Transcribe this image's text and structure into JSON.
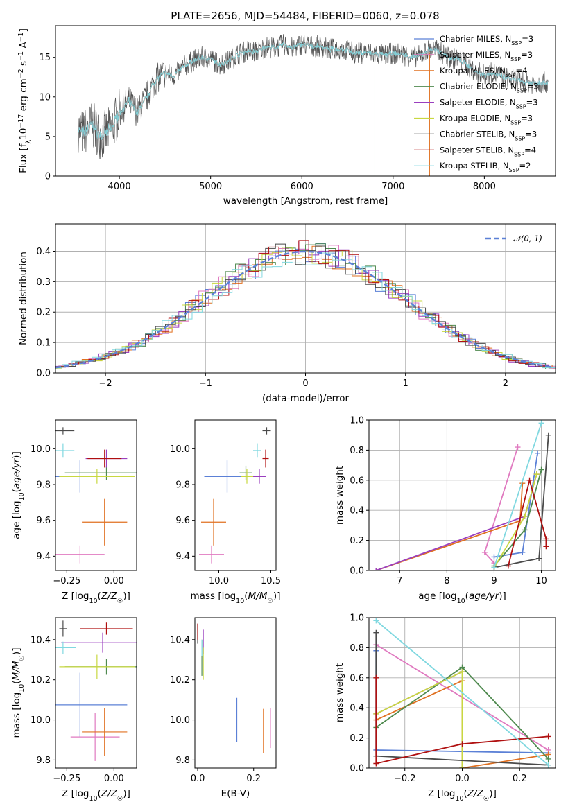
{
  "figure": {
    "title": "PLATE=2656, MJD=54484, FIBERID=0060, z=0.078"
  },
  "chart_data": [
    {
      "id": "spectrum",
      "type": "line",
      "title": "PLATE=2656, MJD=54484, FIBERID=0060, z=0.078",
      "xlabel": "wavelength [Angstrom, rest frame]",
      "ylabel": "Flux [f_λ 10^-17 erg cm^-2 s^-1 A^-1]",
      "xlim": [
        3300,
        8780
      ],
      "ylim": [
        0,
        19
      ],
      "xticks": [
        4000,
        5000,
        6000,
        7000,
        8000
      ],
      "yticks": [
        0,
        5,
        10,
        15
      ],
      "legend_position": "top-right",
      "data": {
        "x": [
          3550,
          3600,
          3700,
          3800,
          3900,
          4000,
          4100,
          4200,
          4300,
          4400,
          4500,
          4600,
          4700,
          4800,
          4900,
          5000,
          5100,
          5200,
          5300,
          5400,
          5500,
          5600,
          5700,
          5800,
          5900,
          6000,
          6100,
          6200,
          6300,
          6400,
          6500,
          6600,
          6700,
          6800,
          6900,
          7000,
          7100,
          7200,
          7300,
          7400,
          7500,
          7600,
          7700,
          7800,
          7900,
          8000,
          8100,
          8200,
          8300,
          8400,
          8500
        ],
        "y": [
          6.0,
          5.4,
          6.5,
          5.0,
          5.8,
          8.0,
          9.5,
          8.0,
          10.0,
          12.2,
          13.0,
          12.7,
          13.8,
          14.5,
          15.0,
          14.8,
          14.1,
          14.5,
          15.4,
          15.8,
          15.7,
          16.3,
          16.2,
          16.6,
          16.2,
          16.7,
          16.4,
          16.4,
          16.0,
          16.1,
          15.9,
          15.5,
          15.6,
          15.4,
          15.3,
          15.5,
          15.4,
          15.0,
          15.2,
          16.0,
          15.8,
          15.0,
          14.8,
          14.2,
          13.2,
          12.8,
          13.0,
          12.5,
          12.2,
          12.0,
          11.8
        ]
      },
      "series": [
        {
          "name": "Chabrier MILES, N_SSP=3",
          "label_main": "Chabrier MILES, N",
          "label_sub": "SSP",
          "label_tail": "=3",
          "color": "#5b80d6",
          "xmin": 3550,
          "xmax": 7400
        },
        {
          "name": "Salpeter MILES, N_SSP=3",
          "label_main": "Salpeter MILES, N",
          "label_sub": "SSP",
          "label_tail": "=3",
          "color": "#e07ac0",
          "xmin": 3550,
          "xmax": 7400
        },
        {
          "name": "Kroupa MILES, N_SSP=4",
          "label_main": "Kroupa MILES, N",
          "label_sub": "SSP",
          "label_tail": "=4",
          "color": "#e07020",
          "xmin": 3550,
          "xmax": 7400
        },
        {
          "name": "Chabrier ELODIE, N_SSP=3",
          "label_main": "Chabrier ELODIE, N",
          "label_sub": "SSP",
          "label_tail": "=3",
          "color": "#4f8a4f",
          "xmin": 3900,
          "xmax": 6800
        },
        {
          "name": "Salpeter ELODIE, N_SSP=3",
          "label_main": "Salpeter ELODIE, N",
          "label_sub": "SSP",
          "label_tail": "=3",
          "color": "#9a3fbf",
          "xmin": 3900,
          "xmax": 6800
        },
        {
          "name": "Kroupa ELODIE, N_SSP=3",
          "label_main": "Kroupa ELODIE, N",
          "label_sub": "SSP",
          "label_tail": "=3",
          "color": "#c8d840",
          "xmin": 3900,
          "xmax": 6800
        },
        {
          "name": "Chabrier STELIB, N_SSP=3",
          "label_main": "Chabrier STELIB, N",
          "label_sub": "SSP",
          "label_tail": "=3",
          "color": "#4a4a4a",
          "xmin": 3550,
          "xmax": 8700
        },
        {
          "name": "Salpeter STELIB, N_SSP=4",
          "label_main": "Salpeter STELIB, N",
          "label_sub": "SSP",
          "label_tail": "=4",
          "color": "#b01010",
          "xmin": 3550,
          "xmax": 8700
        },
        {
          "name": "Kroupa STELIB, N_SSP=2",
          "label_main": "Kroupa STELIB, N",
          "label_sub": "SSP",
          "label_tail": "=2",
          "color": "#80d8e0",
          "xmin": 3550,
          "xmax": 8700
        }
      ]
    },
    {
      "id": "residuals",
      "type": "histogram",
      "xlabel": "(data-model)/error",
      "ylabel": "Normed distribution",
      "xlim": [
        -2.5,
        2.5
      ],
      "ylim": [
        0,
        0.49
      ],
      "xticks": [
        -2,
        -1,
        0,
        1,
        2
      ],
      "yticks": [
        0.0,
        0.1,
        0.2,
        0.3,
        0.4
      ],
      "xtick_labels": [
        "−2",
        "−1",
        "0",
        "1",
        "2"
      ],
      "yticklabels": [
        "0.0",
        "0.1",
        "0.2",
        "0.3",
        "0.4"
      ],
      "bin_width": 0.1,
      "reference_curve": {
        "name": "N(0,1)",
        "label_main": "𝒩(0, 1)",
        "mean": 0,
        "sigma": 1,
        "color": "#5b80d6"
      },
      "legend_position": "top-right",
      "grid": true
    },
    {
      "id": "age_vs_Z",
      "type": "errorbar",
      "xlabel": "Z [log10(Z/Z☉)]",
      "ylabel": "age [log10(age/yr)]",
      "xlim": [
        -0.31,
        0.12
      ],
      "ylim": [
        9.32,
        10.16
      ],
      "xticks": [
        -0.25,
        0.0
      ],
      "yticks": [
        9.4,
        9.6,
        9.8,
        10.0
      ],
      "xtick_labels": [
        "−0.25",
        "0.00"
      ],
      "ytick_labels": [
        "9.4",
        "9.6",
        "9.8",
        "10.0"
      ],
      "points": [
        {
          "x": -0.18,
          "y": 9.845,
          "xerr": 0.25,
          "yerr": 0.09,
          "color": "#5b80d6"
        },
        {
          "x": -0.18,
          "y": 9.41,
          "xerr": 0.13,
          "yerr": 0.05,
          "color": "#e07ac0"
        },
        {
          "x": -0.05,
          "y": 9.59,
          "xerr": 0.12,
          "yerr": 0.13,
          "color": "#e07020"
        },
        {
          "x": -0.04,
          "y": 9.865,
          "xerr": 0.22,
          "yerr": 0.04,
          "color": "#4f8a4f"
        },
        {
          "x": -0.04,
          "y": 9.945,
          "xerr": 0.11,
          "yerr": 0.05,
          "color": "#9a3fbf"
        },
        {
          "x": -0.09,
          "y": 9.845,
          "xerr": 0.2,
          "yerr": 0.04,
          "color": "#c8d840"
        },
        {
          "x": -0.27,
          "y": 10.1,
          "xerr": 0.06,
          "yerr": 0.02,
          "color": "#4a4a4a"
        },
        {
          "x": -0.05,
          "y": 9.945,
          "xerr": 0.09,
          "yerr": 0.05,
          "color": "#b01010"
        },
        {
          "x": -0.27,
          "y": 9.99,
          "xerr": 0.06,
          "yerr": 0.04,
          "color": "#80d8e0"
        }
      ]
    },
    {
      "id": "age_vs_mass",
      "type": "errorbar",
      "xlabel": "mass [log10(M/M☉)]",
      "ylabel": "",
      "xlim": [
        9.77,
        10.55
      ],
      "ylim": [
        9.32,
        10.16
      ],
      "xticks": [
        10.0,
        10.5
      ],
      "yticks": [
        9.4,
        9.6,
        9.8,
        10.0
      ],
      "xtick_labels": [
        "10.0",
        "10.5"
      ],
      "ytick_labels": [
        "9.4",
        "9.6",
        "9.8",
        "10.0"
      ],
      "points": [
        {
          "x": 10.08,
          "y": 9.845,
          "xerr": 0.22,
          "yerr": 0.09,
          "color": "#5b80d6"
        },
        {
          "x": 9.93,
          "y": 9.41,
          "xerr": 0.12,
          "yerr": 0.05,
          "color": "#e07ac0"
        },
        {
          "x": 9.95,
          "y": 9.59,
          "xerr": 0.12,
          "yerr": 0.13,
          "color": "#e07020"
        },
        {
          "x": 10.26,
          "y": 9.865,
          "xerr": 0.06,
          "yerr": 0.04,
          "color": "#4f8a4f"
        },
        {
          "x": 10.39,
          "y": 9.845,
          "xerr": 0.06,
          "yerr": 0.04,
          "color": "#9a3fbf"
        },
        {
          "x": 10.27,
          "y": 9.845,
          "xerr": 0.06,
          "yerr": 0.04,
          "color": "#c8d840"
        },
        {
          "x": 10.46,
          "y": 10.1,
          "xerr": 0.04,
          "yerr": 0.02,
          "color": "#4a4a4a"
        },
        {
          "x": 10.45,
          "y": 9.945,
          "xerr": 0.03,
          "yerr": 0.05,
          "color": "#b01010"
        },
        {
          "x": 10.37,
          "y": 9.99,
          "xerr": 0.04,
          "yerr": 0.04,
          "color": "#80d8e0"
        }
      ]
    },
    {
      "id": "mass_weight_vs_age",
      "type": "line",
      "xlabel": "age [log10(age/yr)]",
      "ylabel": "mass weight",
      "xlim": [
        6.35,
        10.3
      ],
      "ylim": [
        0,
        1.0
      ],
      "xticks": [
        7,
        8,
        9,
        10
      ],
      "yticks": [
        0.0,
        0.2,
        0.4,
        0.6,
        0.8,
        1.0
      ],
      "xtick_labels": [
        "7",
        "8",
        "9",
        "10"
      ],
      "ytick_labels": [
        "0.0",
        "0.2",
        "0.4",
        "0.6",
        "0.8",
        "1.0"
      ],
      "grid": true,
      "series": [
        {
          "color": "#5b80d6",
          "points": [
            [
              9.0,
              0.09
            ],
            [
              9.6,
              0.12
            ],
            [
              9.92,
              0.78
            ]
          ]
        },
        {
          "color": "#e07ac0",
          "points": [
            [
              9.0,
              0.05
            ],
            [
              8.8,
              0.12
            ],
            [
              9.5,
              0.82
            ]
          ]
        },
        {
          "color": "#e07020",
          "points": [
            [
              6.5,
              0.0
            ],
            [
              9.55,
              0.33
            ],
            [
              9.6,
              0.58
            ]
          ]
        },
        {
          "color": "#4f8a4f",
          "points": [
            [
              9.0,
              0.03
            ],
            [
              9.65,
              0.27
            ],
            [
              10.0,
              0.67
            ]
          ]
        },
        {
          "color": "#9a3fbf",
          "points": [
            [
              6.5,
              0.0
            ],
            [
              9.65,
              0.36
            ],
            [
              9.9,
              0.64
            ]
          ]
        },
        {
          "color": "#c8d840",
          "points": [
            [
              9.0,
              0.02
            ],
            [
              9.65,
              0.36
            ],
            [
              9.9,
              0.64
            ]
          ]
        },
        {
          "color": "#4a4a4a",
          "points": [
            [
              9.0,
              0.02
            ],
            [
              9.95,
              0.08
            ],
            [
              10.15,
              0.9
            ]
          ]
        },
        {
          "color": "#b01010",
          "points": [
            [
              9.3,
              0.03
            ],
            [
              9.75,
              0.6
            ],
            [
              10.1,
              0.21
            ],
            [
              10.1,
              0.16
            ]
          ]
        },
        {
          "color": "#80d8e0",
          "points": [
            [
              9.0,
              0.02
            ],
            [
              10.0,
              0.98
            ]
          ]
        }
      ]
    },
    {
      "id": "mass_vs_Z",
      "type": "errorbar",
      "xlabel": "Z [log10(Z/Z☉)]",
      "ylabel": "mass [log10(M/M☉)]",
      "xlim": [
        -0.31,
        0.12
      ],
      "ylim": [
        9.76,
        10.51
      ],
      "xticks": [
        -0.25,
        0.0
      ],
      "yticks": [
        9.8,
        10.0,
        10.2,
        10.4
      ],
      "xtick_labels": [
        "−0.25",
        "0.00"
      ],
      "ytick_labels": [
        "9.8",
        "10.0",
        "10.2",
        "10.4"
      ],
      "points": [
        {
          "x": -0.18,
          "y": 10.075,
          "xerr": 0.25,
          "yerr": 0.16,
          "color": "#5b80d6"
        },
        {
          "x": -0.1,
          "y": 9.915,
          "xerr": 0.13,
          "yerr": 0.12,
          "color": "#e07ac0"
        },
        {
          "x": -0.05,
          "y": 9.94,
          "xerr": 0.12,
          "yerr": 0.12,
          "color": "#e07020"
        },
        {
          "x": -0.04,
          "y": 10.265,
          "xerr": 0.22,
          "yerr": 0.04,
          "color": "#4f8a4f"
        },
        {
          "x": -0.06,
          "y": 10.385,
          "xerr": 0.22,
          "yerr": 0.05,
          "color": "#9a3fbf"
        },
        {
          "x": -0.09,
          "y": 10.265,
          "xerr": 0.2,
          "yerr": 0.06,
          "color": "#c8d840"
        },
        {
          "x": -0.27,
          "y": 10.455,
          "xerr": 0.02,
          "yerr": 0.04,
          "color": "#4a4a4a"
        },
        {
          "x": -0.04,
          "y": 10.455,
          "xerr": 0.14,
          "yerr": 0.03,
          "color": "#b01010"
        },
        {
          "x": -0.27,
          "y": 10.36,
          "xerr": 0.07,
          "yerr": 0.03,
          "color": "#80d8e0"
        }
      ]
    },
    {
      "id": "mass_vs_ebv",
      "type": "errorbar",
      "xlabel": "E(B-V)",
      "ylabel": "",
      "xlim": [
        -0.01,
        0.28
      ],
      "ylim": [
        9.76,
        10.51
      ],
      "xticks": [
        0.0,
        0.2
      ],
      "yticks": [
        9.8,
        10.0,
        10.2,
        10.4
      ],
      "xtick_labels": [
        "0.0",
        "0.2"
      ],
      "ytick_labels": [
        "9.8",
        "10.0",
        "10.2",
        "10.4"
      ],
      "points": [
        {
          "x": 0.14,
          "y": 10.0,
          "xerr": 0.0,
          "yerr": 0.11,
          "color": "#5b80d6"
        },
        {
          "x": 0.26,
          "y": 9.96,
          "xerr": 0.0,
          "yerr": 0.1,
          "color": "#e07ac0"
        },
        {
          "x": 0.235,
          "y": 9.945,
          "xerr": 0.0,
          "yerr": 0.11,
          "color": "#e07020"
        },
        {
          "x": 0.015,
          "y": 10.31,
          "xerr": 0.0,
          "yerr": 0.09,
          "color": "#4f8a4f"
        },
        {
          "x": 0.02,
          "y": 10.39,
          "xerr": 0.0,
          "yerr": 0.06,
          "color": "#9a3fbf"
        },
        {
          "x": 0.02,
          "y": 10.28,
          "xerr": 0.0,
          "yerr": 0.08,
          "color": "#c8d840"
        },
        {
          "x": 0.0,
          "y": 10.43,
          "xerr": 0.0,
          "yerr": 0.05,
          "color": "#4a4a4a"
        },
        {
          "x": 0.0,
          "y": 10.44,
          "xerr": 0.0,
          "yerr": 0.04,
          "color": "#b01010"
        },
        {
          "x": 0.015,
          "y": 10.36,
          "xerr": 0.0,
          "yerr": 0.04,
          "color": "#80d8e0"
        }
      ]
    },
    {
      "id": "mass_weight_vs_Z",
      "type": "line",
      "xlabel": "Z [log10(Z/Z☉)]",
      "ylabel": "mass weight",
      "xlim": [
        -0.325,
        0.325
      ],
      "ylim": [
        0,
        1.0
      ],
      "xticks": [
        -0.2,
        0.0,
        0.2
      ],
      "yticks": [
        0.0,
        0.2,
        0.4,
        0.6,
        0.8,
        1.0
      ],
      "xtick_labels": [
        "−0.2",
        "0.0",
        "0.2"
      ],
      "ytick_labels": [
        "0.0",
        "0.2",
        "0.4",
        "0.6",
        "0.8",
        "1.0"
      ],
      "grid": true,
      "series": [
        {
          "color": "#5b80d6",
          "points": [
            [
              -0.3,
              0.78
            ],
            [
              -0.3,
              0.12
            ],
            [
              0.3,
              0.1
            ]
          ]
        },
        {
          "color": "#e07ac0",
          "points": [
            [
              -0.3,
              0.82
            ],
            [
              0.3,
              0.12
            ]
          ]
        },
        {
          "color": "#e07020",
          "points": [
            [
              -0.3,
              0.32
            ],
            [
              0.0,
              0.58
            ],
            [
              0.0,
              0.0
            ],
            [
              0.3,
              0.09
            ]
          ]
        },
        {
          "color": "#4f8a4f",
          "points": [
            [
              -0.3,
              0.27
            ],
            [
              0.0,
              0.67
            ],
            [
              0.3,
              0.06
            ]
          ]
        },
        {
          "color": "#9a3fbf",
          "points": [
            [
              -0.3,
              0.36
            ],
            [
              0.0,
              0.64
            ]
          ]
        },
        {
          "color": "#c8d840",
          "points": [
            [
              -0.3,
              0.36
            ],
            [
              0.0,
              0.64
            ],
            [
              0.0,
              0.0
            ]
          ]
        },
        {
          "color": "#4a4a4a",
          "points": [
            [
              -0.3,
              0.9
            ],
            [
              -0.3,
              0.08
            ],
            [
              0.3,
              0.02
            ]
          ]
        },
        {
          "color": "#b01010",
          "points": [
            [
              -0.3,
              0.6
            ],
            [
              -0.3,
              0.03
            ],
            [
              0.0,
              0.16
            ],
            [
              0.3,
              0.21
            ]
          ]
        },
        {
          "color": "#80d8e0",
          "points": [
            [
              -0.3,
              0.98
            ],
            [
              0.3,
              0.02
            ]
          ]
        }
      ]
    }
  ]
}
